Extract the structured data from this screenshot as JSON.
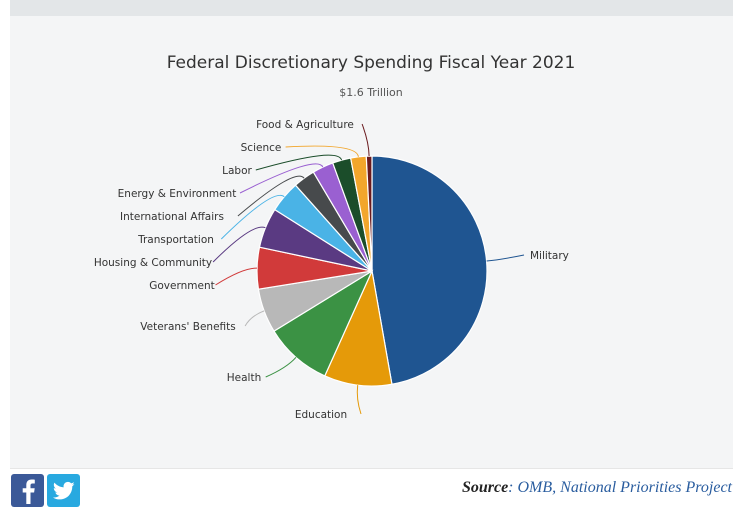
{
  "chart_data": {
    "type": "pie",
    "title": "Federal Discretionary Spending Fiscal Year 2021",
    "subtitle": "$1.6 Trillion",
    "slices": [
      {
        "label": "Military",
        "value": 47.7,
        "color": "#1f5591"
      },
      {
        "label": "Education",
        "value": 9.6,
        "color": "#e59a09"
      },
      {
        "label": "Health",
        "value": 9.6,
        "color": "#3b9244"
      },
      {
        "label": "Veterans' Benefits",
        "value": 6.3,
        "color": "#b8b8b8"
      },
      {
        "label": "Government",
        "value": 5.9,
        "color": "#d13a3a"
      },
      {
        "label": "Housing & Community",
        "value": 5.7,
        "color": "#5a3a82"
      },
      {
        "label": "Transportation",
        "value": 4.5,
        "color": "#4ab3e6"
      },
      {
        "label": "International Affairs",
        "value": 3.1,
        "color": "#474a4c"
      },
      {
        "label": "Energy & Environment",
        "value": 3.0,
        "color": "#9a60d1"
      },
      {
        "label": "Labor",
        "value": 2.6,
        "color": "#1b4d2a"
      },
      {
        "label": "Science",
        "value": 2.2,
        "color": "#f2a62c"
      },
      {
        "label": "Food & Agriculture",
        "value": 0.8,
        "color": "#6a1a1e"
      }
    ]
  },
  "share": {
    "facebook_icon": "facebook-icon",
    "twitter_icon": "twitter-icon"
  },
  "source": {
    "label": "Source",
    "sep1": ": ",
    "link1": "OMB",
    "sep2": ", ",
    "link2": "National Priorities Project"
  }
}
